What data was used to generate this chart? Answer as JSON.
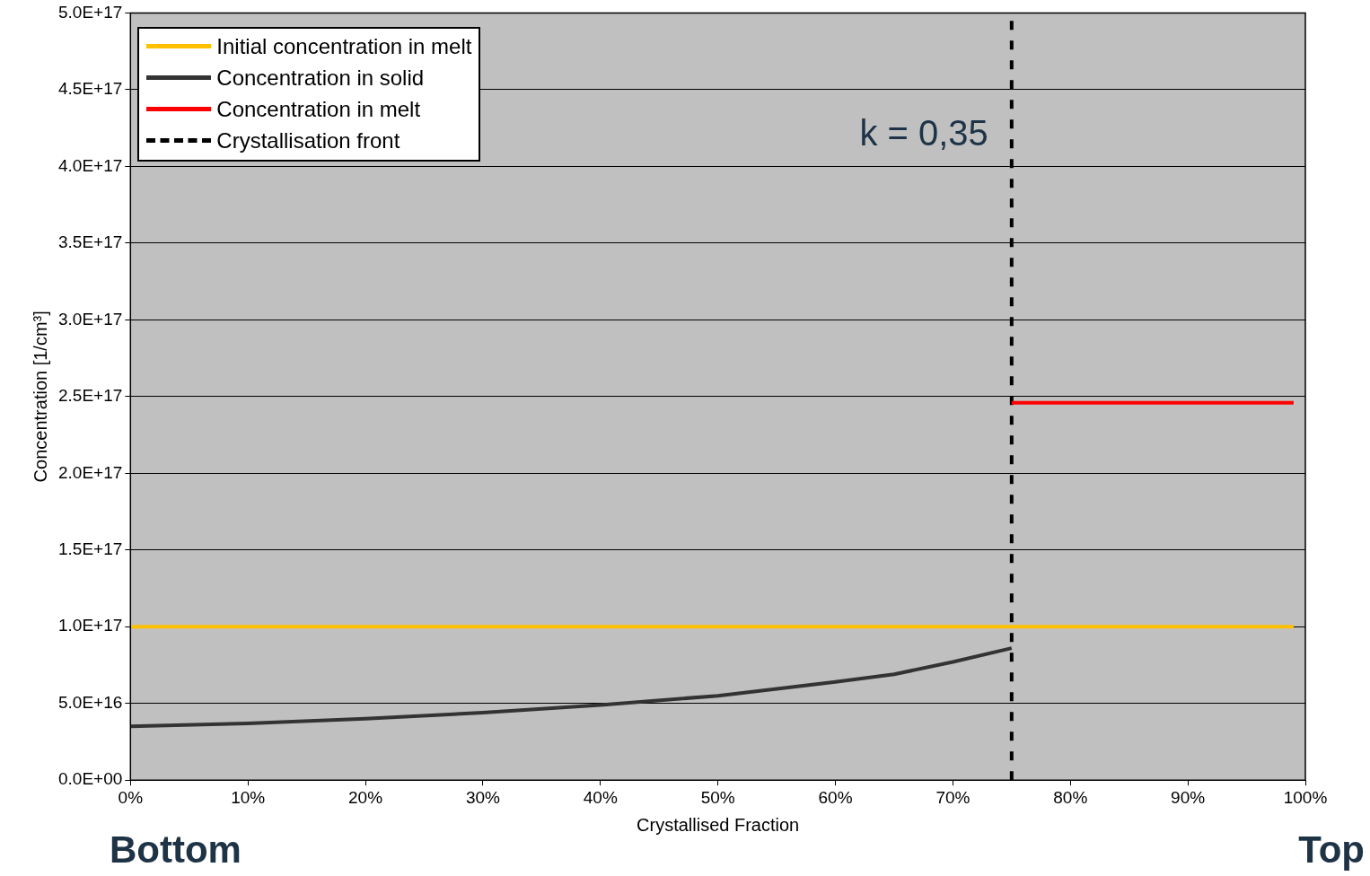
{
  "chart_data": {
    "type": "line",
    "xlabel": "Crystallised Fraction",
    "ylabel": "Concentration [1/cm³]",
    "xlim": [
      0,
      100
    ],
    "xticks": [
      {
        "value": 0,
        "label": "0%"
      },
      {
        "value": 10,
        "label": "10%"
      },
      {
        "value": 20,
        "label": "20%"
      },
      {
        "value": 30,
        "label": "30%"
      },
      {
        "value": 40,
        "label": "40%"
      },
      {
        "value": 50,
        "label": "50%"
      },
      {
        "value": 60,
        "label": "60%"
      },
      {
        "value": 70,
        "label": "70%"
      },
      {
        "value": 80,
        "label": "80%"
      },
      {
        "value": 90,
        "label": "90%"
      },
      {
        "value": 100,
        "label": "100%"
      }
    ],
    "ylim": [
      0,
      5e+17
    ],
    "yticks": [
      {
        "value": 0,
        "label": "0.0E+00"
      },
      {
        "value": 5e+16,
        "label": "5.0E+16"
      },
      {
        "value": 1e+17,
        "label": "1.0E+17"
      },
      {
        "value": 1.5e+17,
        "label": "1.5E+17"
      },
      {
        "value": 2e+17,
        "label": "2.0E+17"
      },
      {
        "value": 2.5e+17,
        "label": "2.5E+17"
      },
      {
        "value": 3e+17,
        "label": "3.0E+17"
      },
      {
        "value": 3.5e+17,
        "label": "3.5E+17"
      },
      {
        "value": 4e+17,
        "label": "4.0E+17"
      },
      {
        "value": 4.5e+17,
        "label": "4.5E+17"
      },
      {
        "value": 5e+17,
        "label": "5.0E+17"
      }
    ],
    "grid": "y",
    "legend": "top left",
    "series": [
      {
        "name": "Initial concentration in melt",
        "color": "#ffc000",
        "x": [
          0,
          99
        ],
        "values": [
          1e+17,
          1e+17
        ]
      },
      {
        "name": "Concentration in solid",
        "color": "#333333",
        "x": [
          0,
          10,
          20,
          30,
          40,
          50,
          60,
          65,
          70,
          75
        ],
        "values": [
          3.5e+16,
          3.7e+16,
          4e+16,
          4.4e+16,
          4.9e+16,
          5.5e+16,
          6.4e+16,
          6.9e+16,
          7.7e+16,
          8.6e+16
        ]
      },
      {
        "name": "Concentration in melt",
        "color": "#ff0000",
        "x": [
          75,
          99
        ],
        "values": [
          2.46e+17,
          2.46e+17
        ]
      },
      {
        "name": "Crystallisation front",
        "color": "#000000",
        "line_style": "dashed",
        "x": [
          75,
          75
        ],
        "values": [
          0,
          5e+17
        ]
      }
    ],
    "annotations": [
      {
        "text": "k = 0,35",
        "x": 75,
        "y": 4.2e+17
      },
      "Bottom",
      "Top"
    ]
  }
}
